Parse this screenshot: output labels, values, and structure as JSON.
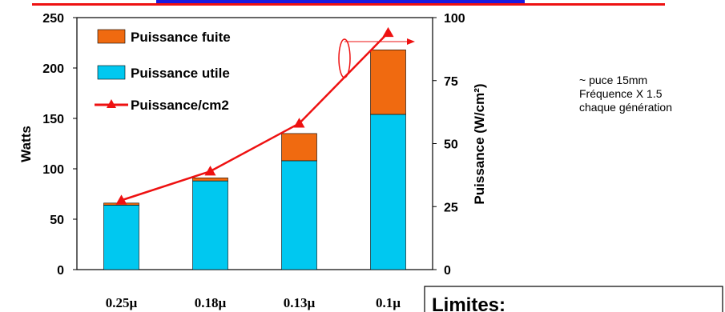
{
  "chart_data": {
    "type": "bar",
    "stacked": true,
    "categories": [
      "0.25µ",
      "0.18µ",
      "0.13µ",
      "0.1µ"
    ],
    "series": [
      {
        "name": "Puissance utile",
        "values": [
          64,
          88,
          108,
          154
        ],
        "color": "#00c8f0",
        "axis": "left"
      },
      {
        "name": "Puissance fuite",
        "values": [
          2,
          3,
          27,
          64
        ],
        "color": "#f06a10",
        "axis": "left"
      },
      {
        "name": "Puissance/cm2",
        "type": "line",
        "values": [
          27.5,
          39,
          58,
          94
        ],
        "color": "#ee1111",
        "axis": "right"
      }
    ],
    "ylabel": "Watts",
    "ylim": [
      0,
      250
    ],
    "yticks": [
      0,
      50,
      100,
      150,
      200,
      250
    ],
    "y2label": "Puissance (W/cm²)",
    "y2lim": [
      0,
      100
    ],
    "y2ticks": [
      0,
      25,
      50,
      75,
      100
    ],
    "legend_position": "top-left",
    "grid": false
  },
  "annotations": {
    "note": [
      "~ puce 15mm",
      "Fréquence X 1.5",
      "chaque génération"
    ],
    "limits_box": "Limites:"
  },
  "colors": {
    "header_line": "#ee1111",
    "header_text": "#1a1ae0"
  }
}
